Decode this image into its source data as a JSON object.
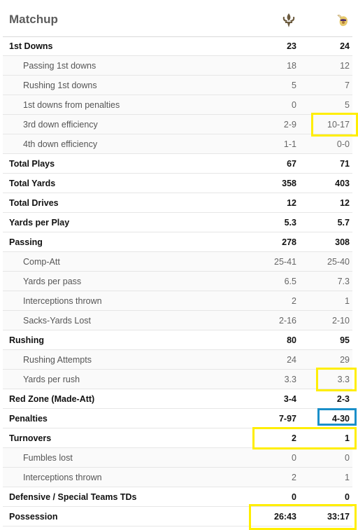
{
  "header": {
    "title": "Matchup",
    "team1_logo": "saints-fleur-de-lis-logo",
    "team2_logo": "vikings-logo"
  },
  "colors": {
    "highlight_yellow": "#ffee00",
    "highlight_blue": "#1b8fc9"
  },
  "rows": [
    {
      "label": "1st Downs",
      "t1": "23",
      "t2": "24",
      "main": true
    },
    {
      "label": "Passing 1st downs",
      "t1": "18",
      "t2": "12",
      "main": false
    },
    {
      "label": "Rushing 1st downs",
      "t1": "5",
      "t2": "7",
      "main": false
    },
    {
      "label": "1st downs from penalties",
      "t1": "0",
      "t2": "5",
      "main": false
    },
    {
      "label": "3rd down efficiency",
      "t1": "2-9",
      "t2": "10-17",
      "main": false
    },
    {
      "label": "4th down efficiency",
      "t1": "1-1",
      "t2": "0-0",
      "main": false
    },
    {
      "label": "Total Plays",
      "t1": "67",
      "t2": "71",
      "main": true
    },
    {
      "label": "Total Yards",
      "t1": "358",
      "t2": "403",
      "main": true
    },
    {
      "label": "Total Drives",
      "t1": "12",
      "t2": "12",
      "main": true
    },
    {
      "label": "Yards per Play",
      "t1": "5.3",
      "t2": "5.7",
      "main": true
    },
    {
      "label": "Passing",
      "t1": "278",
      "t2": "308",
      "main": true
    },
    {
      "label": "Comp-Att",
      "t1": "25-41",
      "t2": "25-40",
      "main": false
    },
    {
      "label": "Yards per pass",
      "t1": "6.5",
      "t2": "7.3",
      "main": false
    },
    {
      "label": "Interceptions thrown",
      "t1": "2",
      "t2": "1",
      "main": false
    },
    {
      "label": "Sacks-Yards Lost",
      "t1": "2-16",
      "t2": "2-10",
      "main": false
    },
    {
      "label": "Rushing",
      "t1": "80",
      "t2": "95",
      "main": true
    },
    {
      "label": "Rushing Attempts",
      "t1": "24",
      "t2": "29",
      "main": false
    },
    {
      "label": "Yards per rush",
      "t1": "3.3",
      "t2": "3.3",
      "main": false
    },
    {
      "label": "Red Zone (Made-Att)",
      "t1": "3-4",
      "t2": "2-3",
      "main": true
    },
    {
      "label": "Penalties",
      "t1": "7-97",
      "t2": "4-30",
      "main": true
    },
    {
      "label": "Turnovers",
      "t1": "2",
      "t2": "1",
      "main": true
    },
    {
      "label": "Fumbles lost",
      "t1": "0",
      "t2": "0",
      "main": false
    },
    {
      "label": "Interceptions thrown",
      "t1": "2",
      "t2": "1",
      "main": false
    },
    {
      "label": "Defensive / Special Teams TDs",
      "t1": "0",
      "t2": "0",
      "main": true
    },
    {
      "label": "Possession",
      "t1": "26:43",
      "t2": "33:17",
      "main": true
    }
  ]
}
